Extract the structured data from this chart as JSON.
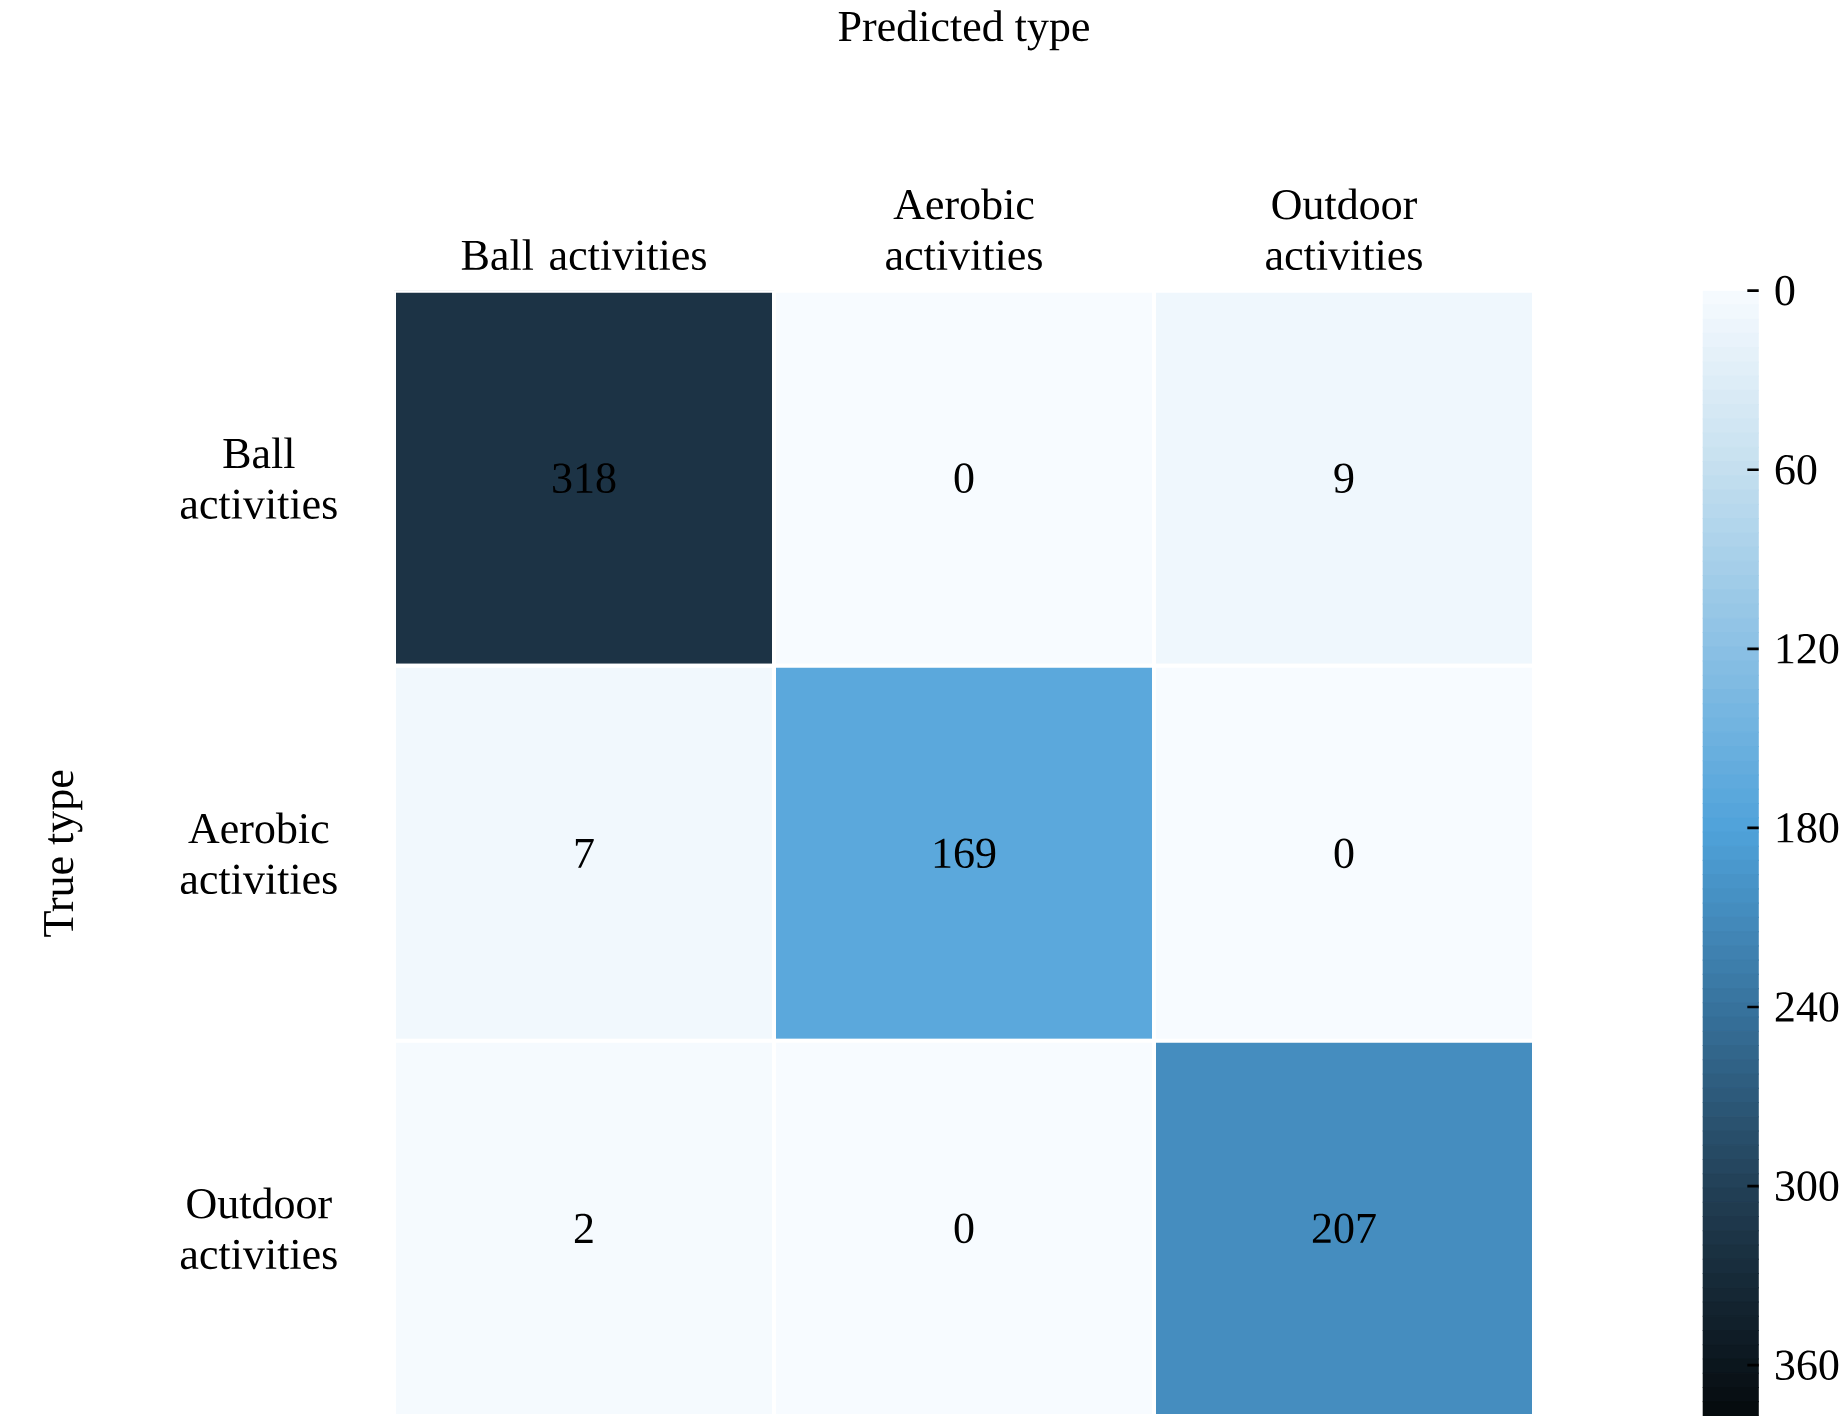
{
  "chart_data": {
    "type": "heatmap",
    "title": "Predicted type",
    "ylabel": "True type",
    "categories": [
      "Ball activities",
      "Aerobic activities",
      "Outdoor activities"
    ],
    "y_categories": [
      "Ball activities",
      "Aerobic activities",
      "Outdoor activities"
    ],
    "cells": [
      [
        318,
        0,
        9
      ],
      [
        7,
        169,
        0
      ],
      [
        2,
        0,
        207
      ]
    ],
    "data_labels": true,
    "clim": [
      0,
      377
    ],
    "cticks": [
      0,
      60,
      120,
      180,
      240,
      300,
      360
    ]
  }
}
